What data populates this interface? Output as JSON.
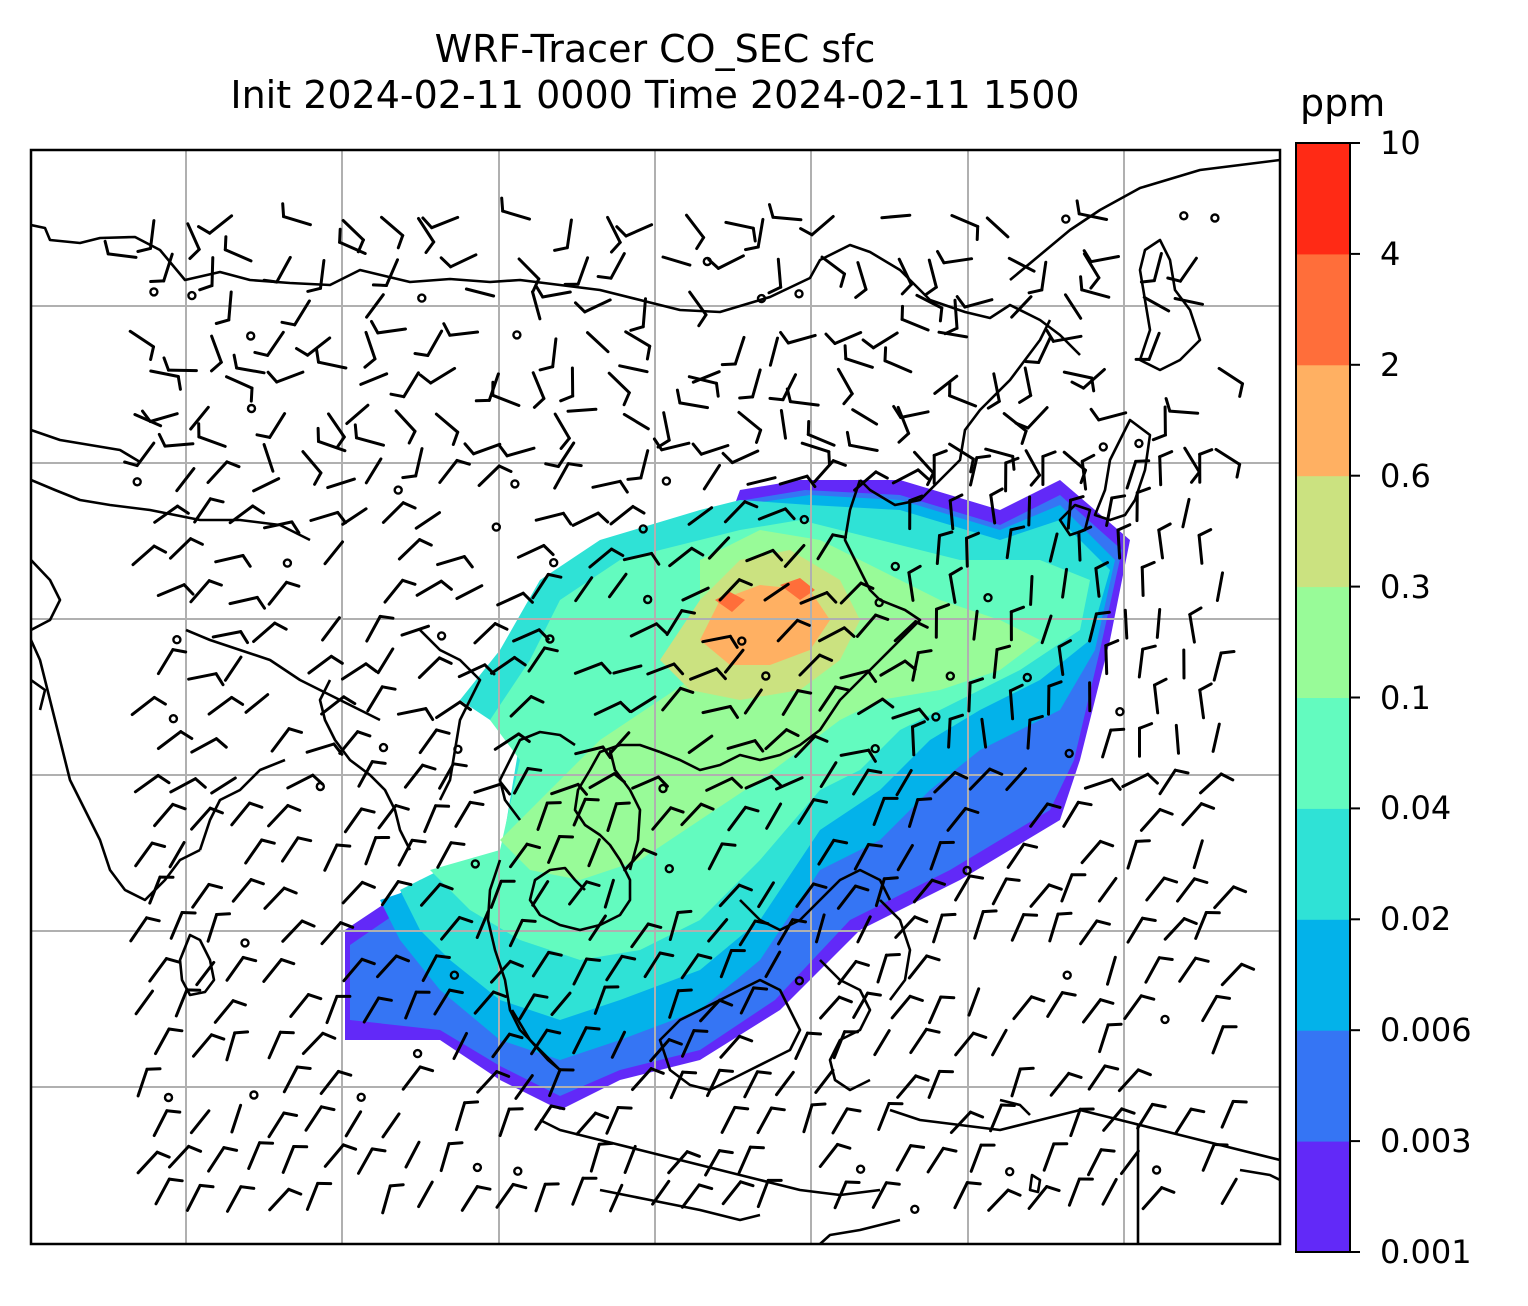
{
  "title": {
    "line1": "WRF-Tracer CO_SEC sfc",
    "line2": "Init 2024-02-11 0000 Time 2024-02-11 1500"
  },
  "colorbar": {
    "unit": "ppm",
    "levels": [
      "0.001",
      "0.003",
      "0.006",
      "0.02",
      "0.04",
      "0.1",
      "0.3",
      "0.6",
      "2",
      "4",
      "10"
    ],
    "colors": [
      "#6229f8",
      "#3575f4",
      "#03b2ea",
      "#2fe2d6",
      "#63fbbf",
      "#98fb98",
      "#cbe280",
      "#ffb062",
      "#ff6e3a",
      "#ff2a15"
    ]
  },
  "map": {
    "frame_color": "#000000",
    "gridline_color": "#b0b0b0",
    "coastline_color": "#000000",
    "wind_barb_color": "#000000",
    "calm_marker": "circle"
  }
}
